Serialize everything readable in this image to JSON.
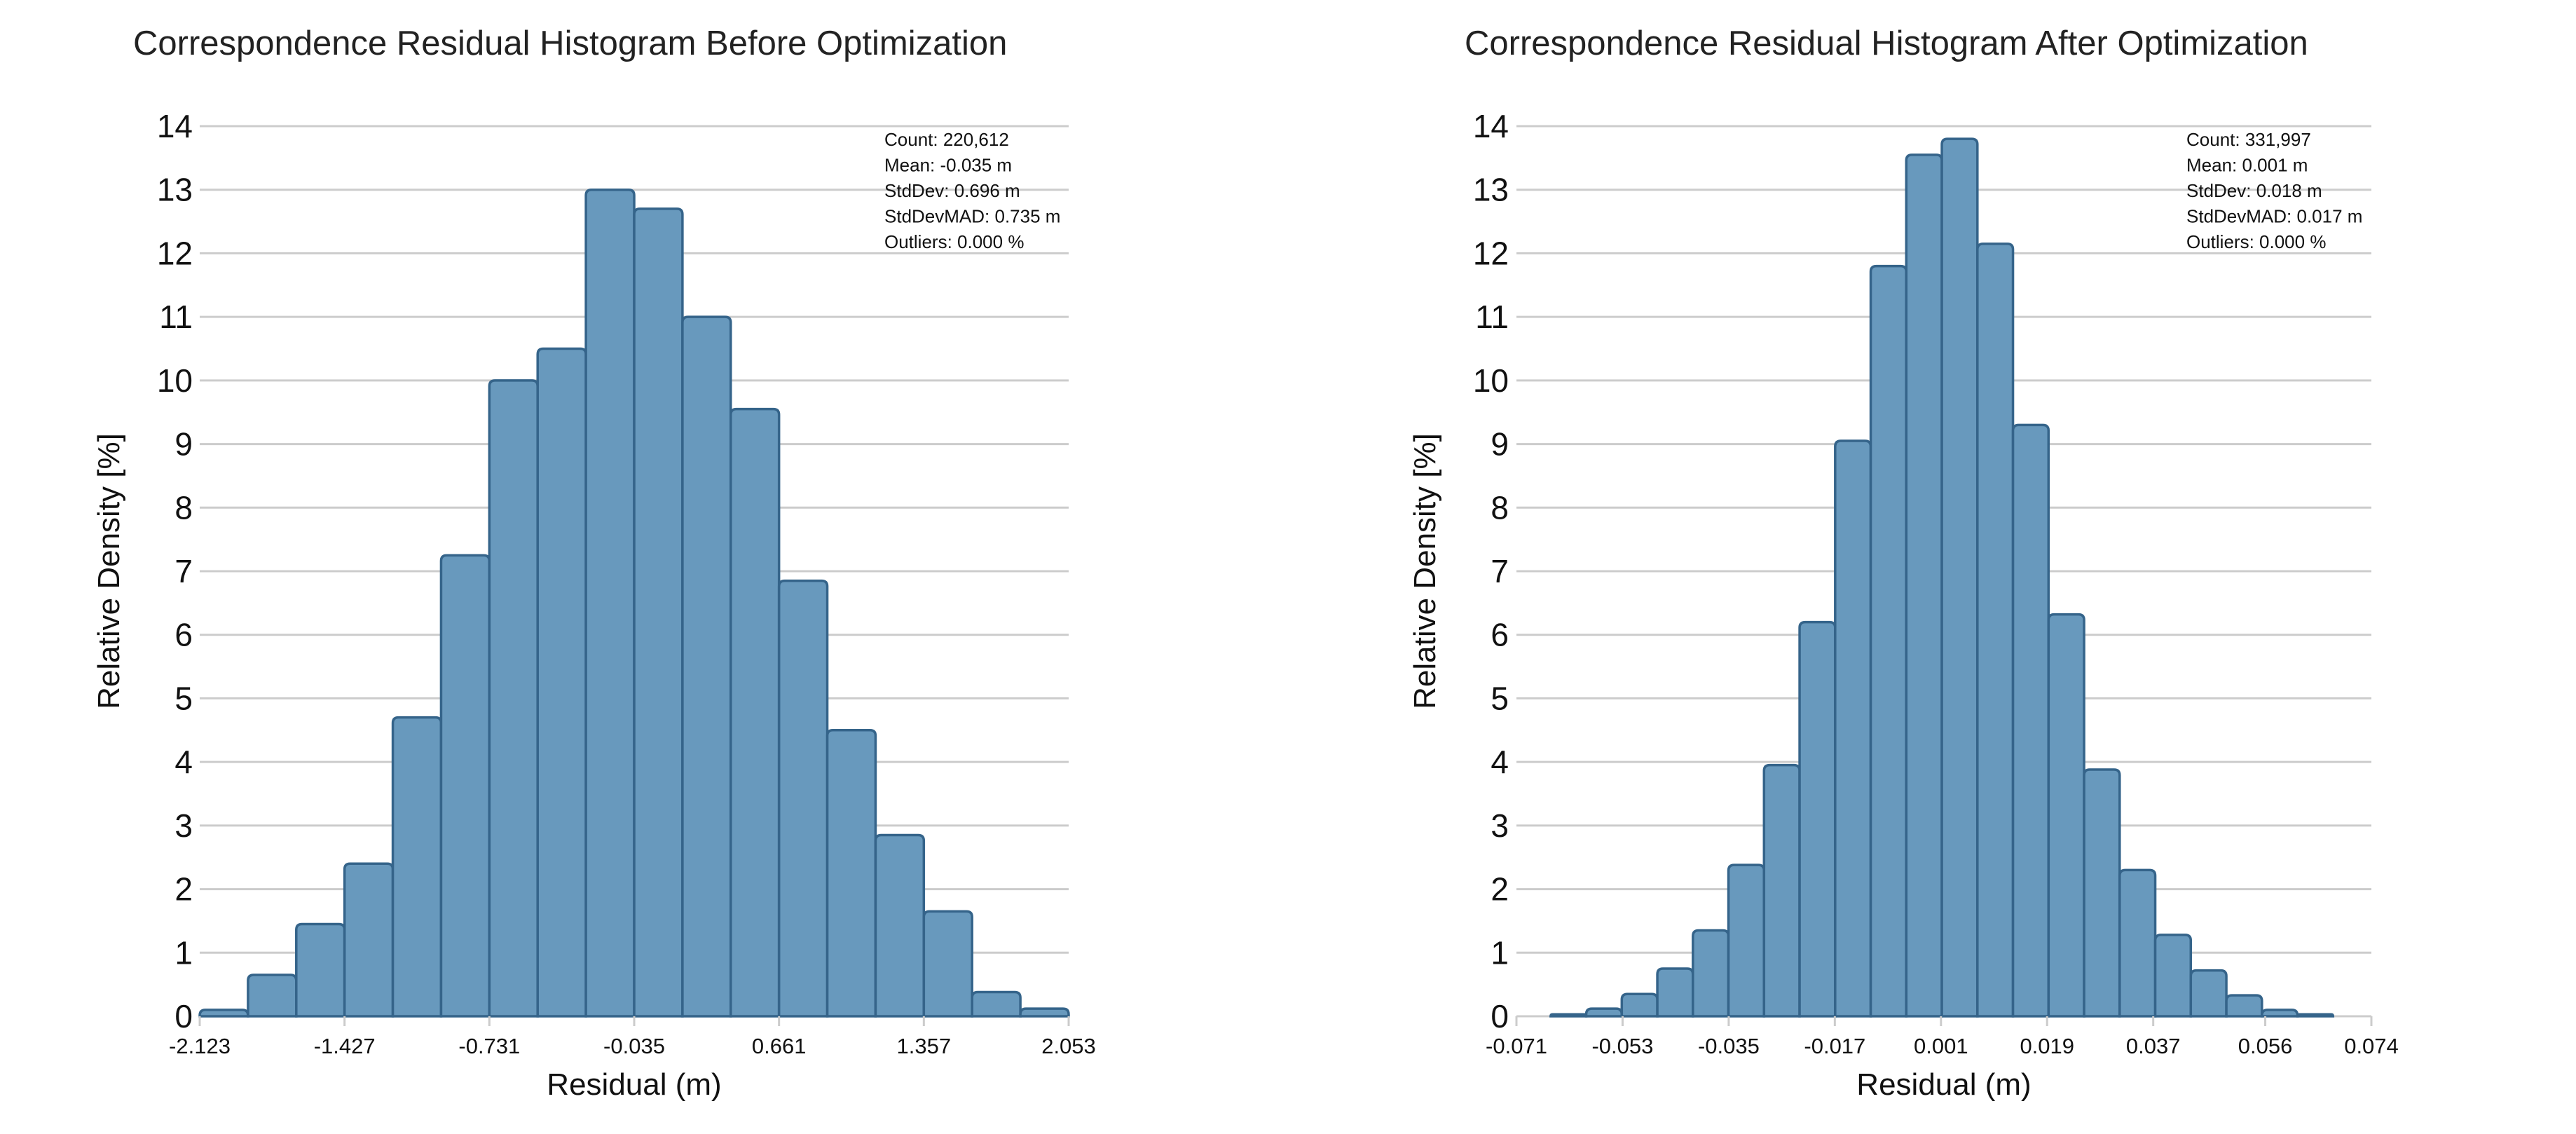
{
  "chart_data": [
    {
      "type": "bar",
      "title": "Correspondence Residual Histogram Before Optimization",
      "xlabel": "Residual (m)",
      "ylabel": "Relative Density [%]",
      "ylim": [
        0,
        14
      ],
      "xlim": [
        -2.123,
        2.053
      ],
      "grid": true,
      "yticks": [
        "0",
        "1",
        "2",
        "3",
        "4",
        "5",
        "6",
        "7",
        "8",
        "9",
        "10",
        "11",
        "12",
        "13",
        "14"
      ],
      "xticks": [
        "-2.123",
        "-1.427",
        "-0.731",
        "-0.035",
        "0.661",
        "1.357",
        "2.053"
      ],
      "xtick_values": [
        -2.123,
        -1.427,
        -0.731,
        -0.035,
        0.661,
        1.357,
        2.053
      ],
      "bin_edges_range": [
        -2.123,
        2.053
      ],
      "values": [
        0.1,
        0.65,
        1.45,
        2.4,
        4.7,
        7.25,
        10.0,
        10.5,
        13.0,
        12.7,
        11.0,
        9.55,
        6.85,
        4.5,
        2.85,
        1.65,
        0.38,
        0.12
      ],
      "stats": {
        "count": "Count: 220,612",
        "mean": "Mean: -0.035 m",
        "stddev": "StdDev: 0.696 m",
        "stddevmad": "StdDevMAD: 0.735 m",
        "outliers": "Outliers: 0.000 %"
      },
      "stats_placement": "top-right",
      "bar_color": "#6899bd",
      "bar_edge_color": "#35648a"
    },
    {
      "type": "bar",
      "title": "Correspondence Residual Histogram After Optimization",
      "xlabel": "Residual (m)",
      "ylabel": "Relative Density [%]",
      "ylim": [
        0,
        14
      ],
      "xlim": [
        -0.071,
        0.074
      ],
      "grid": true,
      "yticks": [
        "0",
        "1",
        "2",
        "3",
        "4",
        "5",
        "6",
        "7",
        "8",
        "9",
        "10",
        "11",
        "12",
        "13",
        "14"
      ],
      "xticks": [
        "-0.071",
        "-0.053",
        "-0.035",
        "-0.017",
        "0.001",
        "0.019",
        "0.037",
        "0.056",
        "0.074"
      ],
      "xtick_values": [
        -0.071,
        -0.053,
        -0.035,
        -0.017,
        0.001,
        0.019,
        0.037,
        0.056,
        0.074
      ],
      "bin_edges_range": [
        -0.0652,
        0.0675
      ],
      "values": [
        0.03,
        0.12,
        0.35,
        0.75,
        1.35,
        2.38,
        3.95,
        6.2,
        9.05,
        11.8,
        13.55,
        13.8,
        12.15,
        9.3,
        6.32,
        3.88,
        2.3,
        1.28,
        0.72,
        0.33,
        0.1,
        0.03
      ],
      "stats": {
        "count": "Count: 331,997",
        "mean": "Mean: 0.001 m",
        "stddev": "StdDev: 0.018 m",
        "stddevmad": "StdDevMAD: 0.017 m",
        "outliers": "Outliers: 0.000 %"
      },
      "stats_placement": "top-right",
      "bar_color": "#6899bd",
      "bar_edge_color": "#35648a"
    }
  ]
}
